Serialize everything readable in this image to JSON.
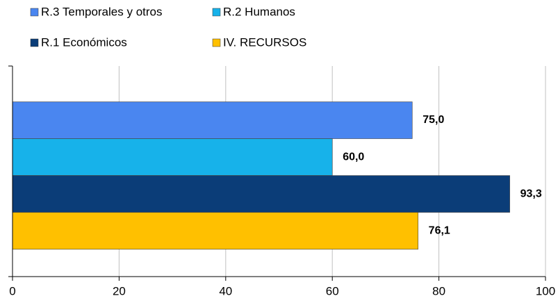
{
  "chart_data": {
    "type": "bar",
    "orientation": "horizontal",
    "categories": [
      null
    ],
    "series": [
      {
        "name": "R.3 Temporales y otros",
        "color": "#4a86f0",
        "values": [
          75.0
        ],
        "value_labels": [
          "75,0"
        ]
      },
      {
        "name": "R.2 Humanos",
        "color": "#17b2ea",
        "values": [
          60.0
        ],
        "value_labels": [
          "60,0"
        ]
      },
      {
        "name": "R.1 Económicos",
        "color": "#0b3d78",
        "values": [
          93.3
        ],
        "value_labels": [
          "93,3"
        ]
      },
      {
        "name": "IV. RECURSOS",
        "color": "#ffc000",
        "values": [
          76.1
        ],
        "value_labels": [
          "76,1"
        ]
      }
    ],
    "xlim": [
      0,
      100
    ],
    "xticks": [
      0,
      20,
      40,
      60,
      80,
      100
    ],
    "grid": true,
    "legend": "top"
  }
}
